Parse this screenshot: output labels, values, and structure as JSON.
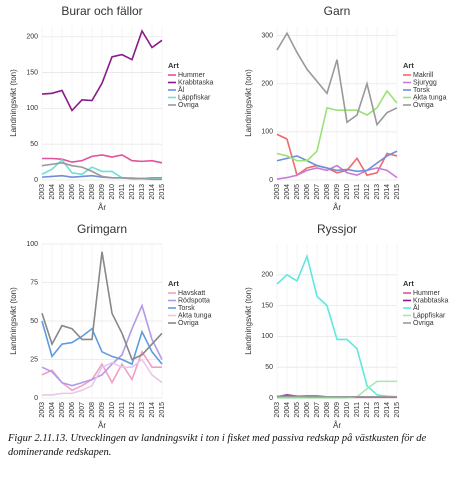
{
  "chart_data": [
    {
      "type": "line",
      "title": "Burar och fällor",
      "y_label": "Landningsvikt (ton)",
      "x_label": "År",
      "legend_title": "Art",
      "categories": [
        "2003",
        "2004",
        "2005",
        "2006",
        "2007",
        "2008",
        "2009",
        "2010",
        "2011",
        "2012",
        "2013",
        "2014",
        "2015"
      ],
      "ylim": [
        0,
        215
      ],
      "yticks": [
        0,
        50,
        100,
        150,
        200
      ],
      "grid": true,
      "series": [
        {
          "name": "Hummer",
          "color": "#e0529c",
          "values": [
            30,
            30,
            29,
            25,
            27,
            33,
            35,
            32,
            35,
            27,
            26,
            27,
            24
          ]
        },
        {
          "name": "Krabbtaska",
          "color": "#8b1a89",
          "values": [
            120,
            121,
            125,
            97,
            112,
            111,
            135,
            172,
            175,
            168,
            208,
            185,
            195
          ]
        },
        {
          "name": "Ål",
          "color": "#6f8fd6",
          "values": [
            4,
            5,
            6,
            4,
            5,
            6,
            4,
            3,
            3,
            2,
            2,
            3,
            3
          ]
        },
        {
          "name": "Läppfiskar",
          "color": "#6fe0d8",
          "values": [
            8,
            15,
            28,
            10,
            8,
            18,
            12,
            12,
            3,
            3,
            2,
            2,
            2
          ]
        },
        {
          "name": "Övriga",
          "color": "#999999",
          "values": [
            20,
            22,
            24,
            20,
            18,
            12,
            5,
            3,
            3,
            2,
            2,
            1,
            1
          ]
        }
      ]
    },
    {
      "type": "line",
      "title": "Garn",
      "y_label": "Landningsvikt (ton)",
      "x_label": "År",
      "legend_title": "Art",
      "categories": [
        "2003",
        "2004",
        "2005",
        "2006",
        "2007",
        "2008",
        "2009",
        "2010",
        "2011",
        "2012",
        "2013",
        "2014",
        "2015"
      ],
      "ylim": [
        0,
        320
      ],
      "yticks": [
        0,
        100,
        200,
        300
      ],
      "grid": true,
      "series": [
        {
          "name": "Makrill",
          "color": "#f06a6a",
          "values": [
            95,
            85,
            10,
            25,
            30,
            25,
            15,
            20,
            45,
            10,
            15,
            55,
            50
          ]
        },
        {
          "name": "Sjurygg",
          "color": "#c77dd6",
          "values": [
            2,
            5,
            10,
            20,
            25,
            20,
            30,
            15,
            10,
            20,
            25,
            20,
            5
          ]
        },
        {
          "name": "Torsk",
          "color": "#6f8fd6",
          "values": [
            40,
            45,
            50,
            40,
            30,
            25,
            20,
            22,
            18,
            20,
            35,
            50,
            60
          ]
        },
        {
          "name": "Akta tunga",
          "color": "#9ee07a",
          "values": [
            55,
            50,
            40,
            40,
            60,
            150,
            145,
            145,
            145,
            135,
            150,
            185,
            160
          ]
        },
        {
          "name": "Övriga",
          "color": "#999999",
          "values": [
            270,
            305,
            265,
            230,
            205,
            180,
            250,
            120,
            135,
            200,
            115,
            140,
            150
          ]
        }
      ]
    },
    {
      "type": "line",
      "title": "Grimgarn",
      "y_label": "Landningsvikt (ton)",
      "x_label": "År",
      "legend_title": "Art",
      "categories": [
        "2003",
        "2004",
        "2005",
        "2006",
        "2007",
        "2008",
        "2009",
        "2010",
        "2011",
        "2012",
        "2013",
        "2014",
        "2015"
      ],
      "ylim": [
        0,
        100
      ],
      "yticks": [
        0,
        25,
        50,
        75,
        100
      ],
      "grid": true,
      "series": [
        {
          "name": "Havskatt",
          "color": "#f0a0c8",
          "values": [
            15,
            18,
            10,
            5,
            8,
            12,
            22,
            10,
            22,
            12,
            30,
            20,
            20
          ]
        },
        {
          "name": "Rödspotta",
          "color": "#b49ae6",
          "values": [
            20,
            17,
            10,
            8,
            10,
            12,
            15,
            22,
            28,
            45,
            60,
            38,
            25
          ]
        },
        {
          "name": "Torsk",
          "color": "#5f9be0",
          "values": [
            50,
            27,
            35,
            36,
            40,
            45,
            30,
            27,
            25,
            22,
            43,
            30,
            22
          ]
        },
        {
          "name": "Akta tunga",
          "color": "#e8c8e8",
          "values": [
            2,
            2,
            3,
            3,
            5,
            8,
            20,
            23,
            20,
            20,
            25,
            15,
            10
          ]
        },
        {
          "name": "Övriga",
          "color": "#888888",
          "values": [
            55,
            35,
            47,
            45,
            38,
            38,
            95,
            55,
            42,
            25,
            28,
            35,
            42
          ]
        }
      ]
    },
    {
      "type": "line",
      "title": "Ryssjor",
      "y_label": "Landningsvikt (ton)",
      "x_label": "År",
      "legend_title": "Art",
      "categories": [
        "2003",
        "2004",
        "2005",
        "2006",
        "2007",
        "2008",
        "2009",
        "2010",
        "2011",
        "2012",
        "2013",
        "2014",
        "2015"
      ],
      "ylim": [
        0,
        250
      ],
      "yticks": [
        0,
        50,
        100,
        150,
        200
      ],
      "grid": true,
      "series": [
        {
          "name": "Hummer",
          "color": "#e0529c",
          "values": [
            1,
            1,
            1,
            1,
            1,
            1,
            1,
            1,
            1,
            1,
            1,
            1,
            1
          ]
        },
        {
          "name": "Krabbtaska",
          "color": "#8b1a89",
          "values": [
            2,
            5,
            3,
            3,
            3,
            2,
            2,
            2,
            2,
            2,
            2,
            2,
            2
          ]
        },
        {
          "name": "Ål",
          "color": "#5fe8e0",
          "values": [
            185,
            200,
            190,
            230,
            165,
            150,
            95,
            95,
            80,
            20,
            5,
            3,
            2
          ]
        },
        {
          "name": "Läppfiskar",
          "color": "#a8e8b0",
          "values": [
            0,
            0,
            0,
            0,
            0,
            0,
            0,
            0,
            2,
            15,
            27,
            27,
            27
          ]
        },
        {
          "name": "Övriga",
          "color": "#999999",
          "values": [
            3,
            3,
            3,
            2,
            2,
            2,
            2,
            2,
            2,
            2,
            2,
            2,
            2
          ]
        }
      ]
    }
  ],
  "caption": "Figur 2.11.13. Utvecklingen av landningsvikt i ton i fisket med passiva redskap på västkusten för de dominerande redskapen."
}
